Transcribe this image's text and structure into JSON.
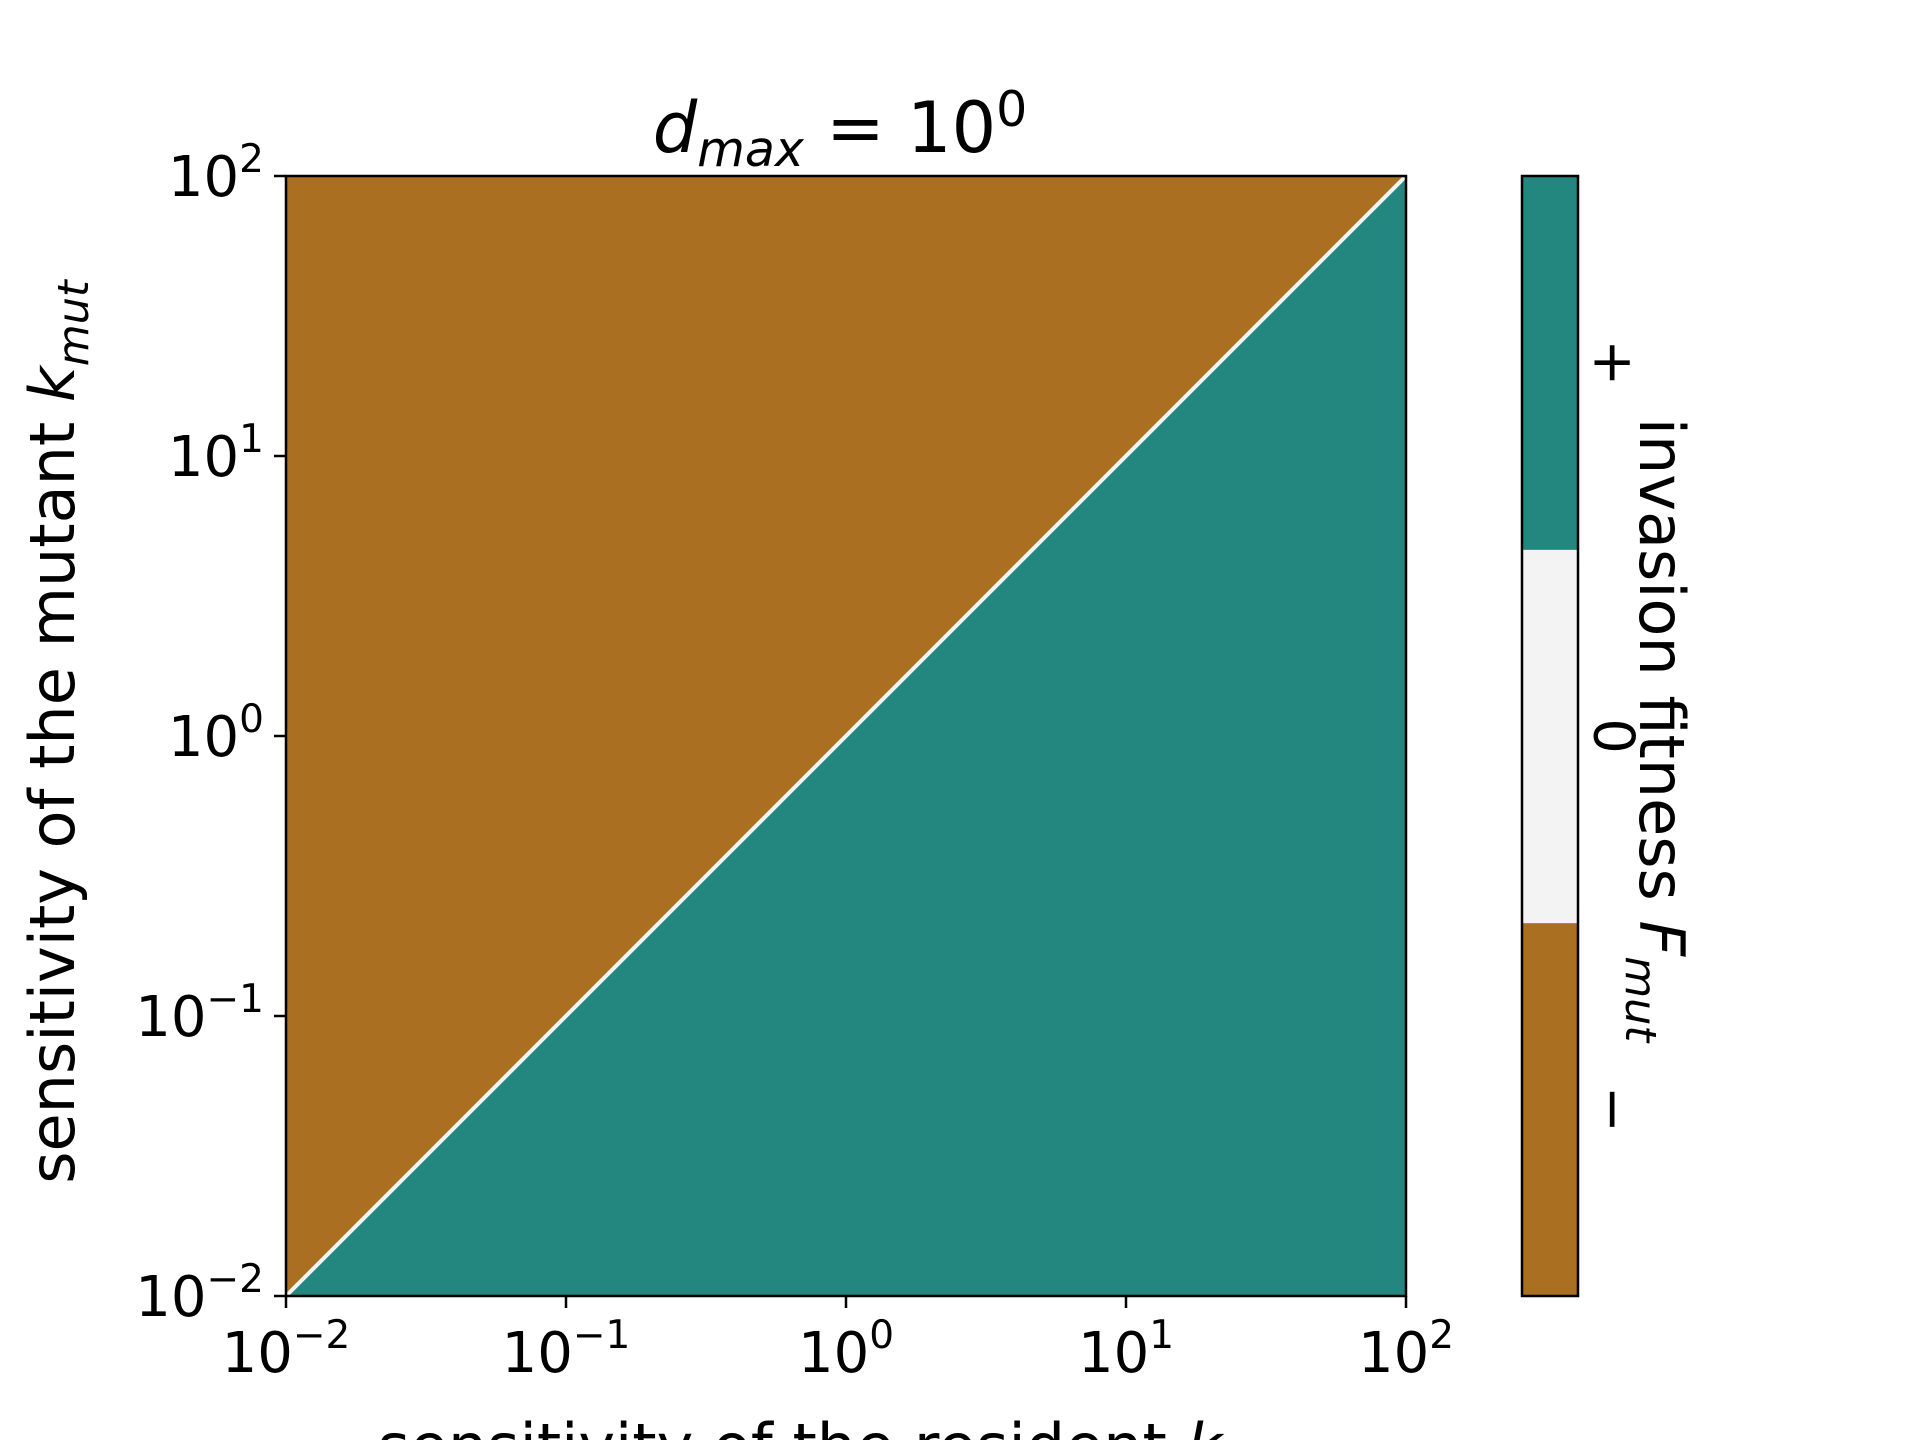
{
  "colors": {
    "negative": "#AB6F22",
    "neutral": "#F2F3F2",
    "positive": "#23877F",
    "boundary": "#F2F3F2",
    "axis": "#000000"
  },
  "chart_data": {
    "type": "heatmap",
    "title": {
      "base": "d",
      "subscript": "max",
      "relation": " = 10",
      "exponent": "0"
    },
    "xlabel": {
      "text": "sensitivity of the resident ",
      "symbol": "k"
    },
    "ylabel": {
      "text": "sensitivity of the mutant ",
      "symbol": "k",
      "subscript": "mut"
    },
    "x_scale": "log",
    "y_scale": "log",
    "xlim": [
      0.01,
      100
    ],
    "ylim": [
      0.01,
      100
    ],
    "x_ticks": [
      {
        "value": 0.01,
        "base": "10",
        "exp": "−2"
      },
      {
        "value": 0.1,
        "base": "10",
        "exp": "−1"
      },
      {
        "value": 1,
        "base": "10",
        "exp": "0"
      },
      {
        "value": 10,
        "base": "10",
        "exp": "1"
      },
      {
        "value": 100,
        "base": "10",
        "exp": "2"
      }
    ],
    "y_ticks": [
      {
        "value": 0.01,
        "base": "10",
        "exp": "−2"
      },
      {
        "value": 0.1,
        "base": "10",
        "exp": "−1"
      },
      {
        "value": 1,
        "base": "10",
        "exp": "0"
      },
      {
        "value": 10,
        "base": "10",
        "exp": "1"
      },
      {
        "value": 100,
        "base": "10",
        "exp": "2"
      }
    ],
    "regions": [
      {
        "condition": "k_mut > k",
        "sign": "−"
      },
      {
        "condition": "k_mut < k",
        "sign": "+"
      }
    ],
    "boundary": "k_mut = k",
    "grid": false,
    "colorbar": {
      "label_text": "invasion fitness ",
      "label_symbol": "F",
      "label_subscript": "mut",
      "levels": [
        {
          "label": "−"
        },
        {
          "label": "0"
        },
        {
          "label": "+"
        }
      ]
    }
  }
}
